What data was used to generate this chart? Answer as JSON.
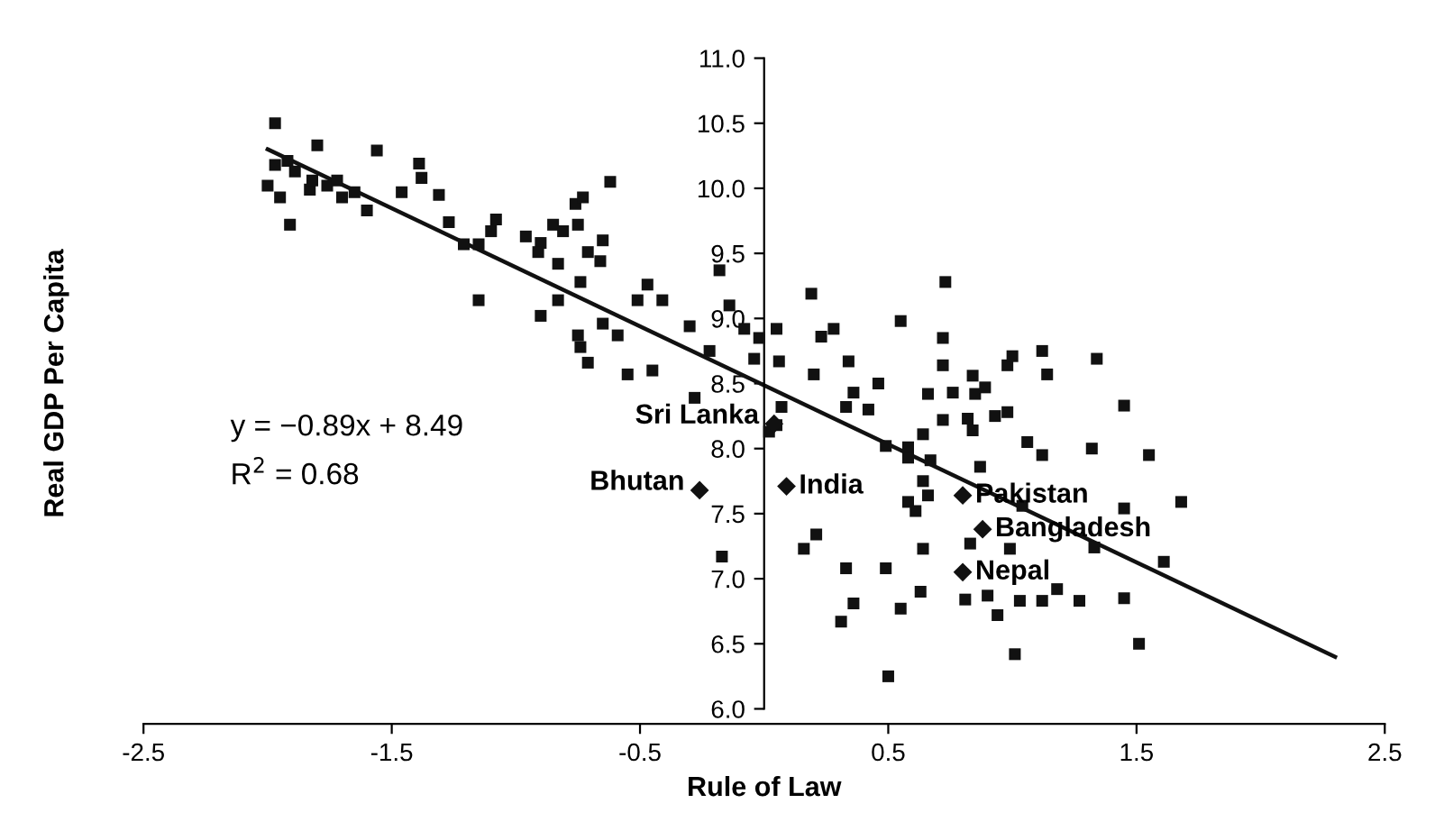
{
  "chart_data": {
    "type": "scatter",
    "xlabel": "Rule of Law",
    "ylabel": "Real GDP Per Capita",
    "xlim": [
      -2.5,
      2.5
    ],
    "xticks": [
      -2.5,
      -1.5,
      -0.5,
      0.5,
      1.5,
      2.5
    ],
    "ylim": [
      6.0,
      11.0
    ],
    "yticks": [
      {
        "value": 6.0,
        "label": "6.0"
      },
      {
        "value": 6.5,
        "label": "6.5"
      },
      {
        "value": 7.0,
        "label": "7.0"
      },
      {
        "value": 7.5,
        "label": "7.5"
      },
      {
        "value": 8.0,
        "label": "8.0"
      },
      {
        "value": 8.5,
        "label": "8.5"
      },
      {
        "value": 9.0,
        "label": "9.0"
      },
      {
        "value": 9.5,
        "label": "9.5"
      },
      {
        "value": 10.0,
        "label": "10.0"
      },
      {
        "value": 10.5,
        "label": "10.5"
      },
      {
        "value": 11.0,
        "label": "11.0"
      }
    ],
    "grid": false,
    "legend": false,
    "series": [
      {
        "marker": "square",
        "color": "#111111",
        "x": [
          -1.97,
          -1.8,
          -1.56,
          -1.39,
          -1.38,
          -1.31,
          -1.46,
          -1.6,
          -1.91,
          -2.0,
          -1.95,
          -1.97,
          -1.92,
          -1.89,
          -1.83,
          -1.82,
          -1.76,
          -1.72,
          -1.7,
          -1.65,
          -1.27,
          -1.21,
          -1.15,
          -1.1,
          -1.08,
          -1.15,
          -0.96,
          -0.9,
          -0.91,
          -0.85,
          -0.81,
          -0.83,
          -0.75,
          -0.76,
          -0.73,
          -0.62,
          -0.71,
          -0.66,
          -0.65,
          -0.74,
          -0.83,
          -0.9,
          -0.65,
          -0.59,
          -0.47,
          -0.51,
          -0.41,
          -0.75,
          -0.74,
          -0.71,
          -0.55,
          -0.45,
          -0.3,
          -0.28,
          -0.22,
          -0.18,
          -0.14,
          -0.08,
          -0.02,
          -0.04,
          0.05,
          0.06,
          0.07,
          0.2,
          0.19,
          0.23,
          0.28,
          0.34,
          0.36,
          0.33,
          0.42,
          0.46,
          0.55,
          0.66,
          0.72,
          0.73,
          0.72,
          0.76,
          0.84,
          0.85,
          0.89,
          0.98,
          1.0,
          1.12,
          1.14,
          1.34,
          1.45,
          0.72,
          0.82,
          0.84,
          0.93,
          0.98,
          1.06,
          1.12,
          1.32,
          1.55,
          1.68,
          0.05,
          0.02,
          0.49,
          0.58,
          0.64,
          0.58,
          0.67,
          0.64,
          0.66,
          0.58,
          0.61,
          0.87,
          1.04,
          1.45,
          0.21,
          0.16,
          0.64,
          0.33,
          0.49,
          0.99,
          1.33,
          1.61,
          0.63,
          0.36,
          0.31,
          0.55,
          0.81,
          0.9,
          0.94,
          1.03,
          1.12,
          1.18,
          1.27,
          1.45,
          1.01,
          1.51,
          0.5,
          -0.17,
          0.83
        ],
        "values": [
          10.5,
          10.33,
          10.29,
          10.19,
          10.08,
          9.95,
          9.97,
          9.83,
          9.72,
          10.02,
          9.93,
          10.18,
          10.21,
          10.13,
          9.99,
          10.06,
          10.02,
          10.06,
          9.93,
          9.97,
          9.74,
          9.57,
          9.57,
          9.67,
          9.76,
          9.14,
          9.63,
          9.58,
          9.51,
          9.72,
          9.67,
          9.42,
          9.72,
          9.88,
          9.93,
          10.05,
          9.51,
          9.44,
          9.6,
          9.28,
          9.14,
          9.02,
          8.96,
          8.87,
          9.26,
          9.14,
          9.14,
          8.87,
          8.78,
          8.66,
          8.57,
          8.6,
          8.94,
          8.39,
          8.75,
          9.37,
          9.1,
          8.92,
          8.85,
          8.69,
          8.92,
          8.67,
          8.32,
          8.57,
          9.19,
          8.86,
          8.92,
          8.67,
          8.43,
          8.32,
          8.3,
          8.5,
          8.98,
          8.42,
          8.85,
          9.28,
          8.64,
          8.43,
          8.56,
          8.42,
          8.47,
          8.64,
          8.71,
          8.75,
          8.57,
          8.69,
          8.33,
          8.22,
          8.23,
          8.14,
          8.25,
          8.28,
          8.05,
          7.95,
          8.0,
          7.95,
          7.59,
          8.18,
          8.13,
          8.02,
          8.01,
          8.11,
          7.93,
          7.91,
          7.75,
          7.64,
          7.59,
          7.52,
          7.86,
          7.56,
          7.54,
          7.34,
          7.23,
          7.23,
          7.08,
          7.08,
          7.23,
          7.24,
          7.13,
          6.9,
          6.81,
          6.67,
          6.77,
          6.84,
          6.87,
          6.72,
          6.83,
          6.83,
          6.92,
          6.83,
          6.85,
          6.42,
          6.5,
          6.25,
          7.17,
          7.27
        ]
      },
      {
        "marker": "diamond",
        "color": "#111111",
        "x": [
          0.04,
          -0.26,
          0.09,
          0.8,
          0.88,
          0.8
        ],
        "values": [
          8.19,
          7.68,
          7.71,
          7.64,
          7.38,
          7.05
        ]
      },
      {
        "type": "line",
        "color": "#111111",
        "line_style": "solid",
        "marker": "none",
        "x": [
          -2.0,
          2.3
        ],
        "values": [
          10.3,
          6.4
        ]
      }
    ],
    "annotations": [
      "y = −0.89x + 8.49",
      "R$^{2}$ = 0.68",
      {
        "text": "Sri Lanka",
        "x": 0.04,
        "y": 8.19
      },
      {
        "text": "Bhutan",
        "x": -0.26,
        "y": 7.68
      },
      {
        "text": "India",
        "x": 0.09,
        "y": 7.71
      },
      {
        "text": "Pakistan",
        "x": 0.8,
        "y": 7.64
      },
      {
        "text": "Bangladesh",
        "x": 0.88,
        "y": 7.38
      },
      {
        "text": "Nepal",
        "x": 0.8,
        "y": 7.05
      }
    ]
  }
}
